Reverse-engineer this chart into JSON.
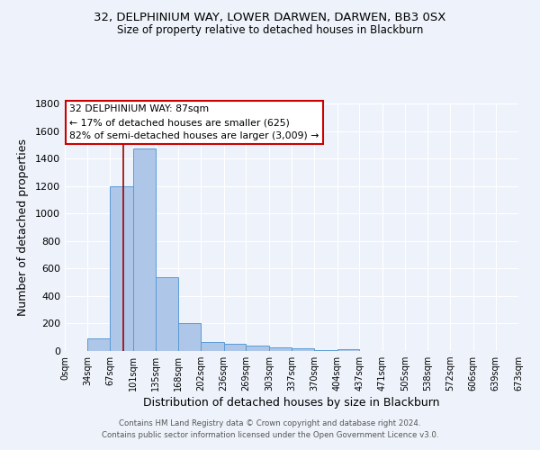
{
  "title": "32, DELPHINIUM WAY, LOWER DARWEN, DARWEN, BB3 0SX",
  "subtitle": "Size of property relative to detached houses in Blackburn",
  "xlabel": "Distribution of detached houses by size in Blackburn",
  "ylabel": "Number of detached properties",
  "footer_line1": "Contains HM Land Registry data © Crown copyright and database right 2024.",
  "footer_line2": "Contains public sector information licensed under the Open Government Licence v3.0.",
  "annotation_title": "32 DELPHINIUM WAY: 87sqm",
  "annotation_line1": "← 17% of detached houses are smaller (625)",
  "annotation_line2": "82% of semi-detached houses are larger (3,009) →",
  "property_size": 87,
  "bar_left_edges": [
    0,
    34,
    67,
    101,
    135,
    168,
    202,
    236,
    269,
    303,
    337,
    370,
    404,
    437,
    471,
    505,
    538,
    572,
    606,
    639
  ],
  "bar_widths": [
    34,
    33,
    34,
    34,
    33,
    34,
    34,
    33,
    34,
    34,
    33,
    34,
    33,
    34,
    34,
    33,
    34,
    34,
    33,
    34
  ],
  "bar_heights": [
    0,
    90,
    1200,
    1470,
    540,
    205,
    65,
    50,
    40,
    25,
    20,
    5,
    10,
    0,
    0,
    0,
    0,
    0,
    0,
    0
  ],
  "tick_labels": [
    "0sqm",
    "34sqm",
    "67sqm",
    "101sqm",
    "135sqm",
    "168sqm",
    "202sqm",
    "236sqm",
    "269sqm",
    "303sqm",
    "337sqm",
    "370sqm",
    "404sqm",
    "437sqm",
    "471sqm",
    "505sqm",
    "538sqm",
    "572sqm",
    "606sqm",
    "639sqm",
    "673sqm"
  ],
  "tick_positions": [
    0,
    34,
    67,
    101,
    135,
    168,
    202,
    236,
    269,
    303,
    337,
    370,
    404,
    437,
    471,
    505,
    538,
    572,
    606,
    639,
    673
  ],
  "ylim": [
    0,
    1800
  ],
  "xlim": [
    0,
    673
  ],
  "bar_color": "#aec6e8",
  "bar_edge_color": "#5b9bd5",
  "vline_color": "#a00000",
  "bg_color": "#eef3fb",
  "grid_color": "#ffffff",
  "annotation_box_color": "#ffffff",
  "annotation_box_edge": "#cc0000",
  "footer_color": "#555555"
}
